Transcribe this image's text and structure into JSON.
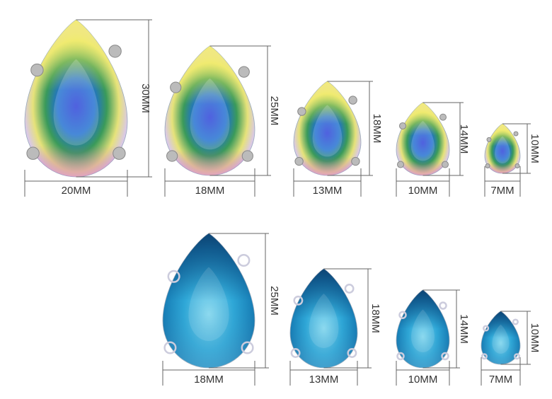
{
  "rows": [
    {
      "items": [
        {
          "width": "20MM",
          "height": "30MM"
        },
        {
          "width": "18MM",
          "height": "25MM"
        },
        {
          "width": "13MM",
          "height": "18MM"
        },
        {
          "width": "10MM",
          "height": "14MM"
        },
        {
          "width": "7MM",
          "height": "10MM"
        }
      ]
    },
    {
      "items": [
        {
          "width": "18MM",
          "height": "25MM"
        },
        {
          "width": "13MM",
          "height": "18MM"
        },
        {
          "width": "10MM",
          "height": "14MM"
        },
        {
          "width": "7MM",
          "height": "10MM"
        }
      ]
    }
  ]
}
